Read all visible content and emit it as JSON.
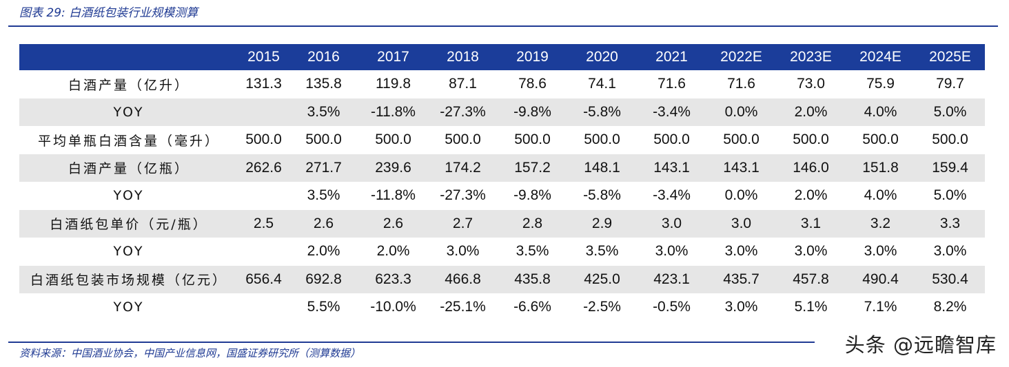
{
  "title": "图表 29:  白酒纸包装行业规模测算",
  "table": {
    "columns": [
      "",
      "2015",
      "2016",
      "2017",
      "2018",
      "2019",
      "2020",
      "2021",
      "2022E",
      "2023E",
      "2024E",
      "2025E"
    ],
    "rows": [
      {
        "label": "白酒产量（亿升）",
        "values": [
          "131.3",
          "135.8",
          "119.8",
          "87.1",
          "78.6",
          "74.1",
          "71.6",
          "71.6",
          "73.0",
          "75.9",
          "79.7"
        ]
      },
      {
        "label": "YOY",
        "values": [
          "",
          "3.5%",
          "-11.8%",
          "-27.3%",
          "-9.8%",
          "-5.8%",
          "-3.4%",
          "0.0%",
          "2.0%",
          "4.0%",
          "5.0%"
        ]
      },
      {
        "label": "平均单瓶白酒含量（毫升）",
        "values": [
          "500.0",
          "500.0",
          "500.0",
          "500.0",
          "500.0",
          "500.0",
          "500.0",
          "500.0",
          "500.0",
          "500.0",
          "500.0"
        ]
      },
      {
        "label": "白酒产量（亿瓶）",
        "values": [
          "262.6",
          "271.7",
          "239.6",
          "174.2",
          "157.2",
          "148.1",
          "143.1",
          "143.1",
          "146.0",
          "151.8",
          "159.4"
        ]
      },
      {
        "label": "YOY",
        "values": [
          "",
          "3.5%",
          "-11.8%",
          "-27.3%",
          "-9.8%",
          "-5.8%",
          "-3.4%",
          "0.0%",
          "2.0%",
          "4.0%",
          "5.0%"
        ]
      },
      {
        "label": "白酒纸包单价（元/瓶）",
        "values": [
          "2.5",
          "2.6",
          "2.6",
          "2.7",
          "2.8",
          "2.9",
          "3.0",
          "3.0",
          "3.1",
          "3.2",
          "3.3"
        ]
      },
      {
        "label": "YOY",
        "values": [
          "",
          "2.0%",
          "2.0%",
          "3.0%",
          "3.5%",
          "3.5%",
          "3.0%",
          "3.0%",
          "3.0%",
          "3.0%",
          "3.0%"
        ]
      },
      {
        "label": "白酒纸包装市场规模（亿元）",
        "values": [
          "656.4",
          "692.8",
          "623.3",
          "466.8",
          "435.8",
          "425.0",
          "423.1",
          "435.7",
          "457.8",
          "490.4",
          "530.4"
        ]
      },
      {
        "label": "YOY",
        "values": [
          "",
          "5.5%",
          "-10.0%",
          "-25.1%",
          "-6.6%",
          "-2.5%",
          "-0.5%",
          "3.0%",
          "5.1%",
          "7.1%",
          "8.2%"
        ]
      }
    ]
  },
  "source": "资料来源：中国酒业协会，中国产业信息网，国盛证券研究所（测算数据）",
  "watermark": "头条 @远瞻智库",
  "colors": {
    "header_bg": "#1b3d9a",
    "accent": "#1f3a93",
    "stripe": "#e6e6e6"
  }
}
